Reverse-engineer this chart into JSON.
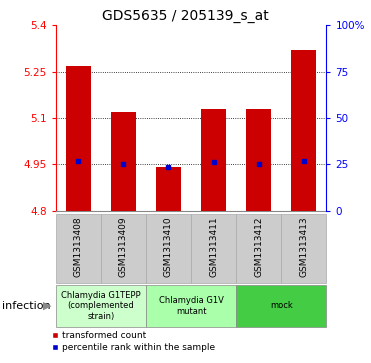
{
  "title": "GDS5635 / 205139_s_at",
  "samples": [
    "GSM1313408",
    "GSM1313409",
    "GSM1313410",
    "GSM1313411",
    "GSM1313412",
    "GSM1313413"
  ],
  "bar_tops": [
    5.27,
    5.12,
    4.942,
    5.13,
    5.13,
    5.32
  ],
  "bar_bottom": 4.8,
  "blue_values": [
    4.962,
    4.952,
    4.941,
    4.957,
    4.952,
    4.96
  ],
  "ylim": [
    4.8,
    5.4
  ],
  "yticks_left": [
    4.8,
    4.95,
    5.1,
    5.25,
    5.4
  ],
  "ytick_labels_left": [
    "4.8",
    "4.95",
    "5.1",
    "5.25",
    "5.4"
  ],
  "ytick_labels_right": [
    "0",
    "25",
    "50",
    "75",
    "100%"
  ],
  "grid_yticks": [
    4.95,
    5.1,
    5.25
  ],
  "bar_color": "#cc0000",
  "blue_color": "#0000cc",
  "bar_width": 0.55,
  "group_info": [
    {
      "xmin": 0,
      "xmax": 2,
      "label": "Chlamydia G1TEPP\n(complemented\nstrain)",
      "color": "#ccffcc"
    },
    {
      "xmin": 2,
      "xmax": 4,
      "label": "Chlamydia G1V\nmutant",
      "color": "#aaffaa"
    },
    {
      "xmin": 4,
      "xmax": 6,
      "label": "mock",
      "color": "#44cc44"
    }
  ],
  "infection_label": "infection",
  "legend_red": "transformed count",
  "legend_blue": "percentile rank within the sample",
  "title_fontsize": 10,
  "tick_fontsize": 7.5,
  "label_fontsize": 6.5,
  "group_fontsize": 6,
  "legend_fontsize": 6.5
}
